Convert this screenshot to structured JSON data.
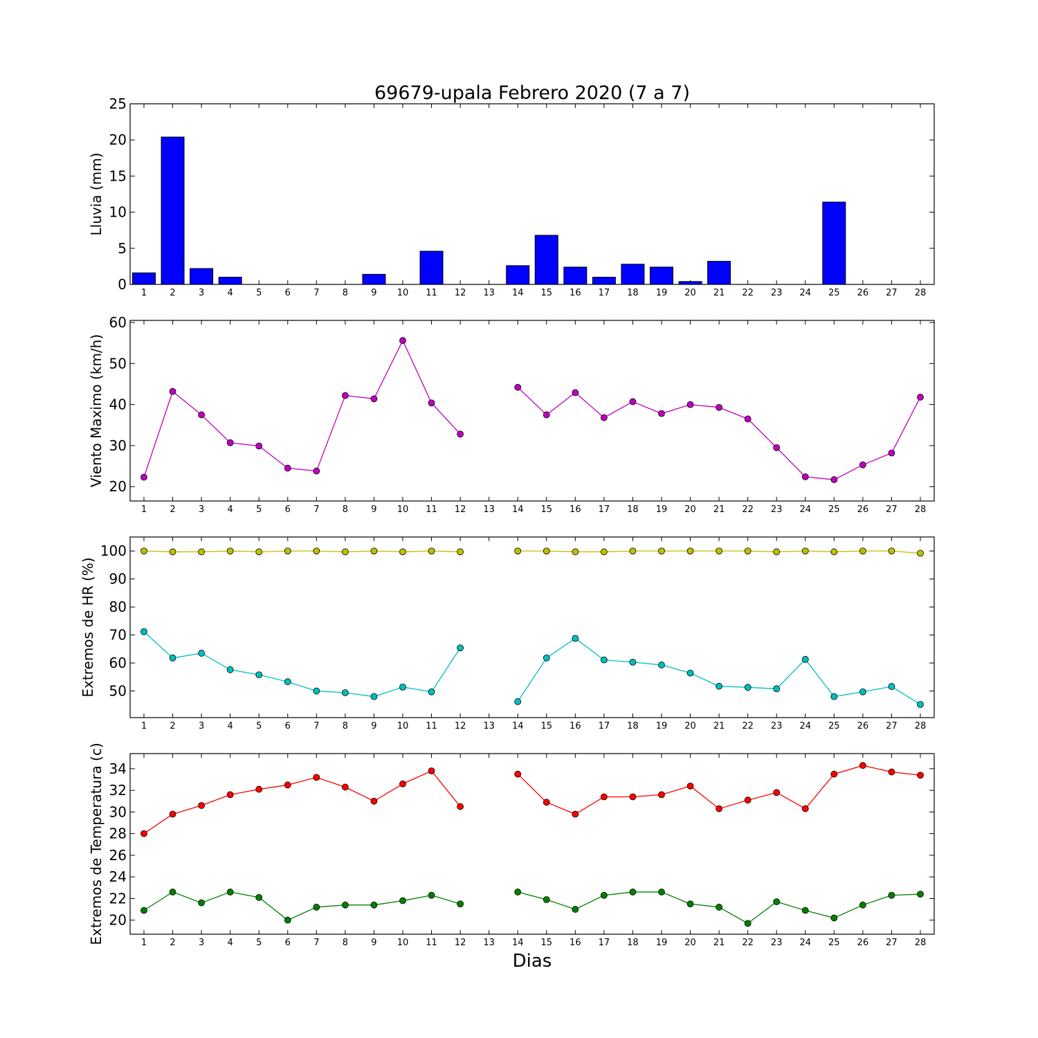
{
  "figure": {
    "title": "69679-upala Febrero 2020  (7 a 7)",
    "xlabel": "Dias"
  },
  "colors": {
    "lluvia": "#0000ff",
    "viento": "#bf00bf",
    "hr_max": "#bfbf00",
    "hr_min": "#00bfbf",
    "temp_max": "#ff0000",
    "temp_min": "#008000"
  },
  "chart_data": [
    {
      "type": "bar",
      "title": "69679-upala Febrero 2020  (7 a 7)",
      "ylabel": "Lluvia (mm)",
      "xlabel": "",
      "x": [
        1,
        2,
        3,
        4,
        5,
        6,
        7,
        8,
        9,
        10,
        11,
        12,
        13,
        14,
        15,
        16,
        17,
        18,
        19,
        20,
        21,
        22,
        23,
        24,
        25,
        26,
        27,
        28
      ],
      "ylim": [
        0,
        25
      ],
      "yticks": [
        0,
        5,
        10,
        15,
        20,
        25
      ],
      "grid": false,
      "series": [
        {
          "values": [
            1.6,
            20.4,
            2.2,
            1.0,
            0,
            0,
            0,
            0,
            1.4,
            0,
            4.6,
            0,
            0,
            2.6,
            6.8,
            2.4,
            1.0,
            2.8,
            2.4,
            0.4,
            3.2,
            0,
            0,
            0,
            11.4,
            0,
            0,
            0
          ],
          "color_key": "lluvia"
        }
      ]
    },
    {
      "type": "line",
      "ylabel": "Viento Maximo (km/h)",
      "xlabel": "",
      "x": [
        1,
        2,
        3,
        4,
        5,
        6,
        7,
        8,
        9,
        10,
        11,
        12,
        13,
        14,
        15,
        16,
        17,
        18,
        19,
        20,
        21,
        22,
        23,
        24,
        25,
        26,
        27,
        28
      ],
      "ylim": [
        16.5,
        60.5
      ],
      "yticks": [
        20,
        30,
        40,
        50,
        60
      ],
      "grid": false,
      "series": [
        {
          "values": [
            22.3,
            43.2,
            37.5,
            30.7,
            29.9,
            24.5,
            23.8,
            42.2,
            41.4,
            55.6,
            40.4,
            32.8,
            null,
            44.2,
            37.5,
            42.9,
            36.8,
            40.7,
            37.8,
            40.0,
            39.3,
            36.5,
            29.5,
            22.4,
            21.7,
            25.3,
            28.2,
            41.8
          ],
          "color_key": "viento"
        }
      ]
    },
    {
      "type": "line",
      "ylabel": "Extremos de HR (%)",
      "xlabel": "",
      "x": [
        1,
        2,
        3,
        4,
        5,
        6,
        7,
        8,
        9,
        10,
        11,
        12,
        13,
        14,
        15,
        16,
        17,
        18,
        19,
        20,
        21,
        22,
        23,
        24,
        25,
        26,
        27,
        28
      ],
      "ylim": [
        40.5,
        105
      ],
      "yticks": [
        50,
        60,
        70,
        80,
        90,
        100
      ],
      "grid": false,
      "series": [
        {
          "values": [
            100,
            99.7,
            99.7,
            100,
            99.7,
            100,
            100,
            99.7,
            100,
            99.7,
            100,
            99.7,
            null,
            100,
            100,
            99.7,
            99.7,
            100,
            100,
            100,
            100,
            100,
            99.7,
            100,
            99.7,
            100,
            100,
            99.2
          ],
          "color_key": "hr_max"
        },
        {
          "values": [
            71.2,
            61.8,
            63.5,
            57.6,
            55.8,
            53.3,
            50.0,
            49.4,
            48.0,
            51.4,
            49.7,
            65.4,
            null,
            46.2,
            61.8,
            68.8,
            61.1,
            60.3,
            59.3,
            56.4,
            51.7,
            51.3,
            50.8,
            61.3,
            48.0,
            49.7,
            51.6,
            45.2
          ],
          "color_key": "hr_min"
        }
      ]
    },
    {
      "type": "line",
      "ylabel": "Extremos de Temperatura (c)",
      "xlabel": "Dias",
      "x": [
        1,
        2,
        3,
        4,
        5,
        6,
        7,
        8,
        9,
        10,
        11,
        12,
        13,
        14,
        15,
        16,
        17,
        18,
        19,
        20,
        21,
        22,
        23,
        24,
        25,
        26,
        27,
        28
      ],
      "ylim": [
        18.7,
        35.4
      ],
      "yticks": [
        20,
        22,
        24,
        26,
        28,
        30,
        32,
        34
      ],
      "grid": false,
      "series": [
        {
          "values": [
            28.0,
            29.8,
            30.6,
            31.6,
            32.1,
            32.5,
            33.2,
            32.3,
            31.0,
            32.6,
            33.8,
            30.5,
            null,
            33.5,
            30.9,
            29.8,
            31.4,
            31.4,
            31.6,
            32.4,
            30.3,
            31.1,
            31.8,
            30.3,
            33.5,
            34.3,
            33.7,
            33.4
          ],
          "color_key": "temp_max"
        },
        {
          "values": [
            20.9,
            22.6,
            21.6,
            22.6,
            22.1,
            20.0,
            21.2,
            21.4,
            21.4,
            21.8,
            22.3,
            21.5,
            null,
            22.6,
            21.9,
            21.0,
            22.3,
            22.6,
            22.6,
            21.5,
            21.2,
            19.7,
            21.7,
            20.9,
            20.2,
            21.4,
            22.3,
            22.4
          ],
          "color_key": "temp_min"
        }
      ]
    }
  ]
}
